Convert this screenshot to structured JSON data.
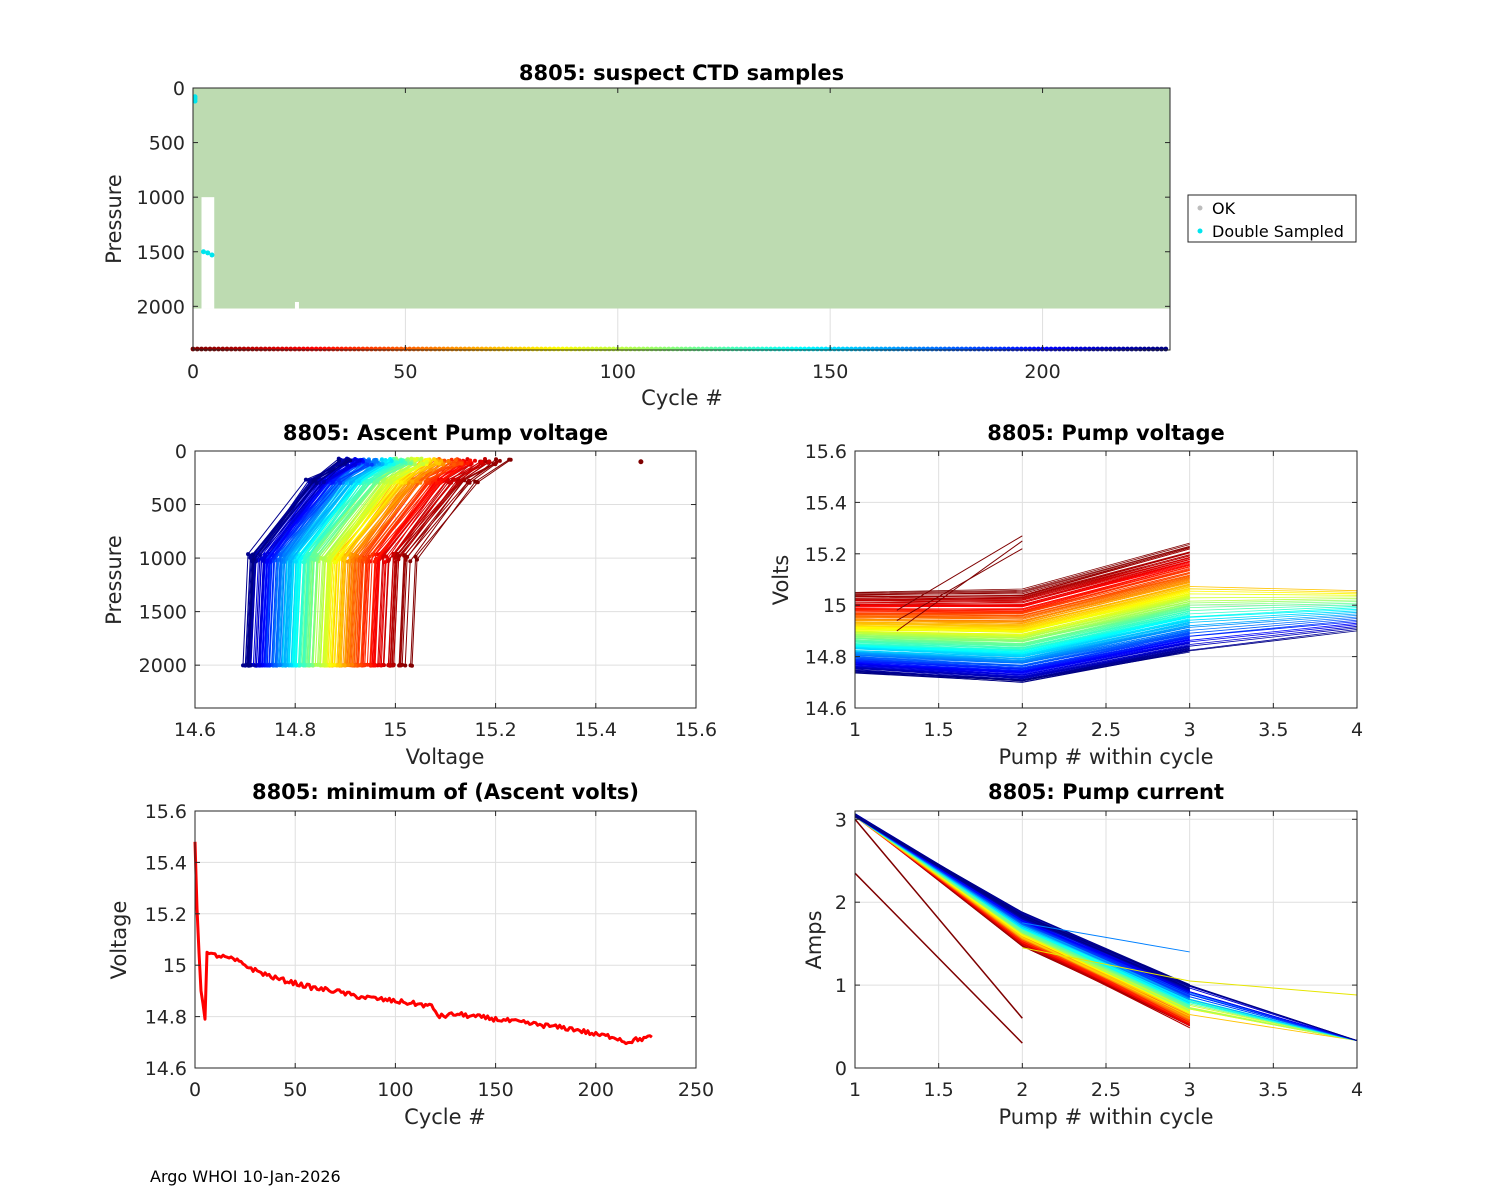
{
  "float_id": "8805",
  "footer": "Argo WHOI 10-Jan-2026",
  "chart_data": [
    {
      "id": "suspect",
      "type": "scatter",
      "title": "8805: suspect CTD samples",
      "xlabel": "Cycle #",
      "ylabel": "Pressure",
      "xlim": [
        0,
        230
      ],
      "ylim": [
        2400,
        0
      ],
      "xticks": [
        "0",
        "50",
        "100",
        "150",
        "200"
      ],
      "yticks": [
        "0",
        "500",
        "1000",
        "1500",
        "2000"
      ],
      "legend": {
        "position": "right",
        "entries": [
          {
            "name": "OK",
            "color": "#bdbdbd"
          },
          {
            "name": "Double Sampled",
            "color": "#00e5ee"
          }
        ]
      },
      "ok_fill_color": "#bddbb1",
      "ok_region": {
        "cycles": [
          0,
          230
        ],
        "pressure": [
          0,
          2020
        ]
      },
      "double_sampled_points": [
        [
          0,
          80
        ],
        [
          0,
          100
        ],
        [
          0,
          120
        ],
        [
          2,
          1500
        ],
        [
          3,
          1510
        ],
        [
          4,
          1530
        ]
      ],
      "cycle_strip_pressure": 2400
    },
    {
      "id": "ascent",
      "type": "line",
      "title": "8805: Ascent Pump voltage",
      "xlabel": "Voltage",
      "ylabel": "Pressure",
      "xlim": [
        14.6,
        15.6
      ],
      "ylim": [
        2400,
        0
      ],
      "xticks": [
        "14.6",
        "14.8",
        "15",
        "15.2",
        "15.4",
        "15.6"
      ],
      "yticks": [
        "0",
        "500",
        "1000",
        "1500",
        "2000"
      ],
      "n_cycles": 229,
      "series_model": "per cycle: ascent pumps at pressures ~2000, ~1000, ~280, ~100 dbar; voltage decays from ~15.28 to ~14.72 over cycles",
      "profile_pressures": [
        2000,
        1000,
        280,
        100
      ],
      "voltage_start": 15.05,
      "voltage_end": 14.72,
      "outlier_point": [
        15.49,
        100
      ]
    },
    {
      "id": "pumpv",
      "type": "line",
      "title": "8805: Pump voltage",
      "xlabel": "Pump # within cycle",
      "ylabel": "Volts",
      "xlim": [
        1,
        4
      ],
      "ylim": [
        14.6,
        15.6
      ],
      "xticks": [
        "1",
        "1.5",
        "2",
        "2.5",
        "3",
        "3.5",
        "4"
      ],
      "yticks": [
        "14.6",
        "14.8",
        "15",
        "15.2",
        "15.4",
        "15.6"
      ],
      "series_model": "one line per cycle through pumps 1..3 (some to 4); voltage declines with cycle number",
      "pump1_range": [
        14.74,
        15.05
      ],
      "pump2_range": [
        14.7,
        15.06
      ],
      "pump3_range": [
        14.82,
        15.24
      ],
      "pump4_range": [
        14.9,
        15.06
      ]
    },
    {
      "id": "minv",
      "type": "line",
      "title": "8805: minimum of (Ascent volts)",
      "xlabel": "Cycle #",
      "ylabel": "Voltage",
      "xlim": [
        0,
        250
      ],
      "ylim": [
        14.6,
        15.6
      ],
      "xticks": [
        "0",
        "50",
        "100",
        "150",
        "200",
        "250"
      ],
      "yticks": [
        "14.6",
        "14.8",
        "15",
        "15.2",
        "15.4",
        "15.6"
      ],
      "color": "#ff0000",
      "series": [
        {
          "name": "minimum ascent volts",
          "x": [
            0,
            1,
            2,
            3,
            4,
            5,
            6,
            8,
            10,
            20,
            30,
            40,
            50,
            60,
            70,
            80,
            90,
            100,
            110,
            118,
            122,
            130,
            140,
            150,
            160,
            170,
            180,
            190,
            200,
            210,
            215,
            220,
            228
          ],
          "y": [
            15.48,
            15.22,
            15.05,
            14.9,
            14.85,
            14.79,
            15.05,
            15.04,
            15.04,
            15.02,
            14.98,
            14.95,
            14.93,
            14.91,
            14.9,
            14.88,
            14.87,
            14.86,
            14.85,
            14.84,
            14.8,
            14.81,
            14.8,
            14.79,
            14.78,
            14.77,
            14.76,
            14.75,
            14.73,
            14.72,
            14.7,
            14.71,
            14.72
          ]
        }
      ]
    },
    {
      "id": "current",
      "type": "line",
      "title": "8805: Pump current",
      "xlabel": "Pump # within cycle",
      "ylabel": "Amps",
      "xlim": [
        1,
        4
      ],
      "ylim": [
        0,
        3.1
      ],
      "xticks": [
        "1",
        "1.5",
        "2",
        "2.5",
        "3",
        "3.5",
        "4"
      ],
      "yticks": [
        "0",
        "1",
        "2",
        "3"
      ],
      "series_model": "one line per cycle through pumps 1..3 (some to 4)",
      "pump1_current": 3.05,
      "pump2_current_range": [
        1.5,
        1.85
      ],
      "pump3_current_range": [
        0.5,
        1.0
      ],
      "pump4_current": 0.33,
      "low_start_lines": [
        [
          2.35,
          0.3
        ],
        [
          3.0,
          0.6
        ]
      ]
    }
  ]
}
